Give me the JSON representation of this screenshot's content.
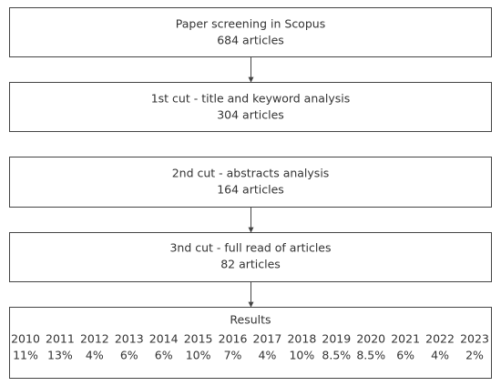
{
  "nodes": [
    {
      "title": "Paper screening in Scopus",
      "subtitle": "684 articles"
    },
    {
      "title": "1st cut - title and keyword analysis",
      "subtitle": "304 articles"
    },
    {
      "title": "2nd cut - abstracts analysis",
      "subtitle": "164 articles"
    },
    {
      "title": "3nd cut - full read of articles",
      "subtitle": "82 articles"
    }
  ],
  "results": {
    "title": "Results",
    "years": [
      "2010",
      "2011",
      "2012",
      "2013",
      "2014",
      "2015",
      "2016",
      "2017",
      "2018",
      "2019",
      "2020",
      "2021",
      "2022",
      "2023"
    ],
    "shares": [
      "11%",
      "13%",
      "4%",
      "6%",
      "6%",
      "10%",
      "7%",
      "4%",
      "10%",
      "8.5%",
      "8.5%",
      "6%",
      "4%",
      "2%"
    ]
  }
}
